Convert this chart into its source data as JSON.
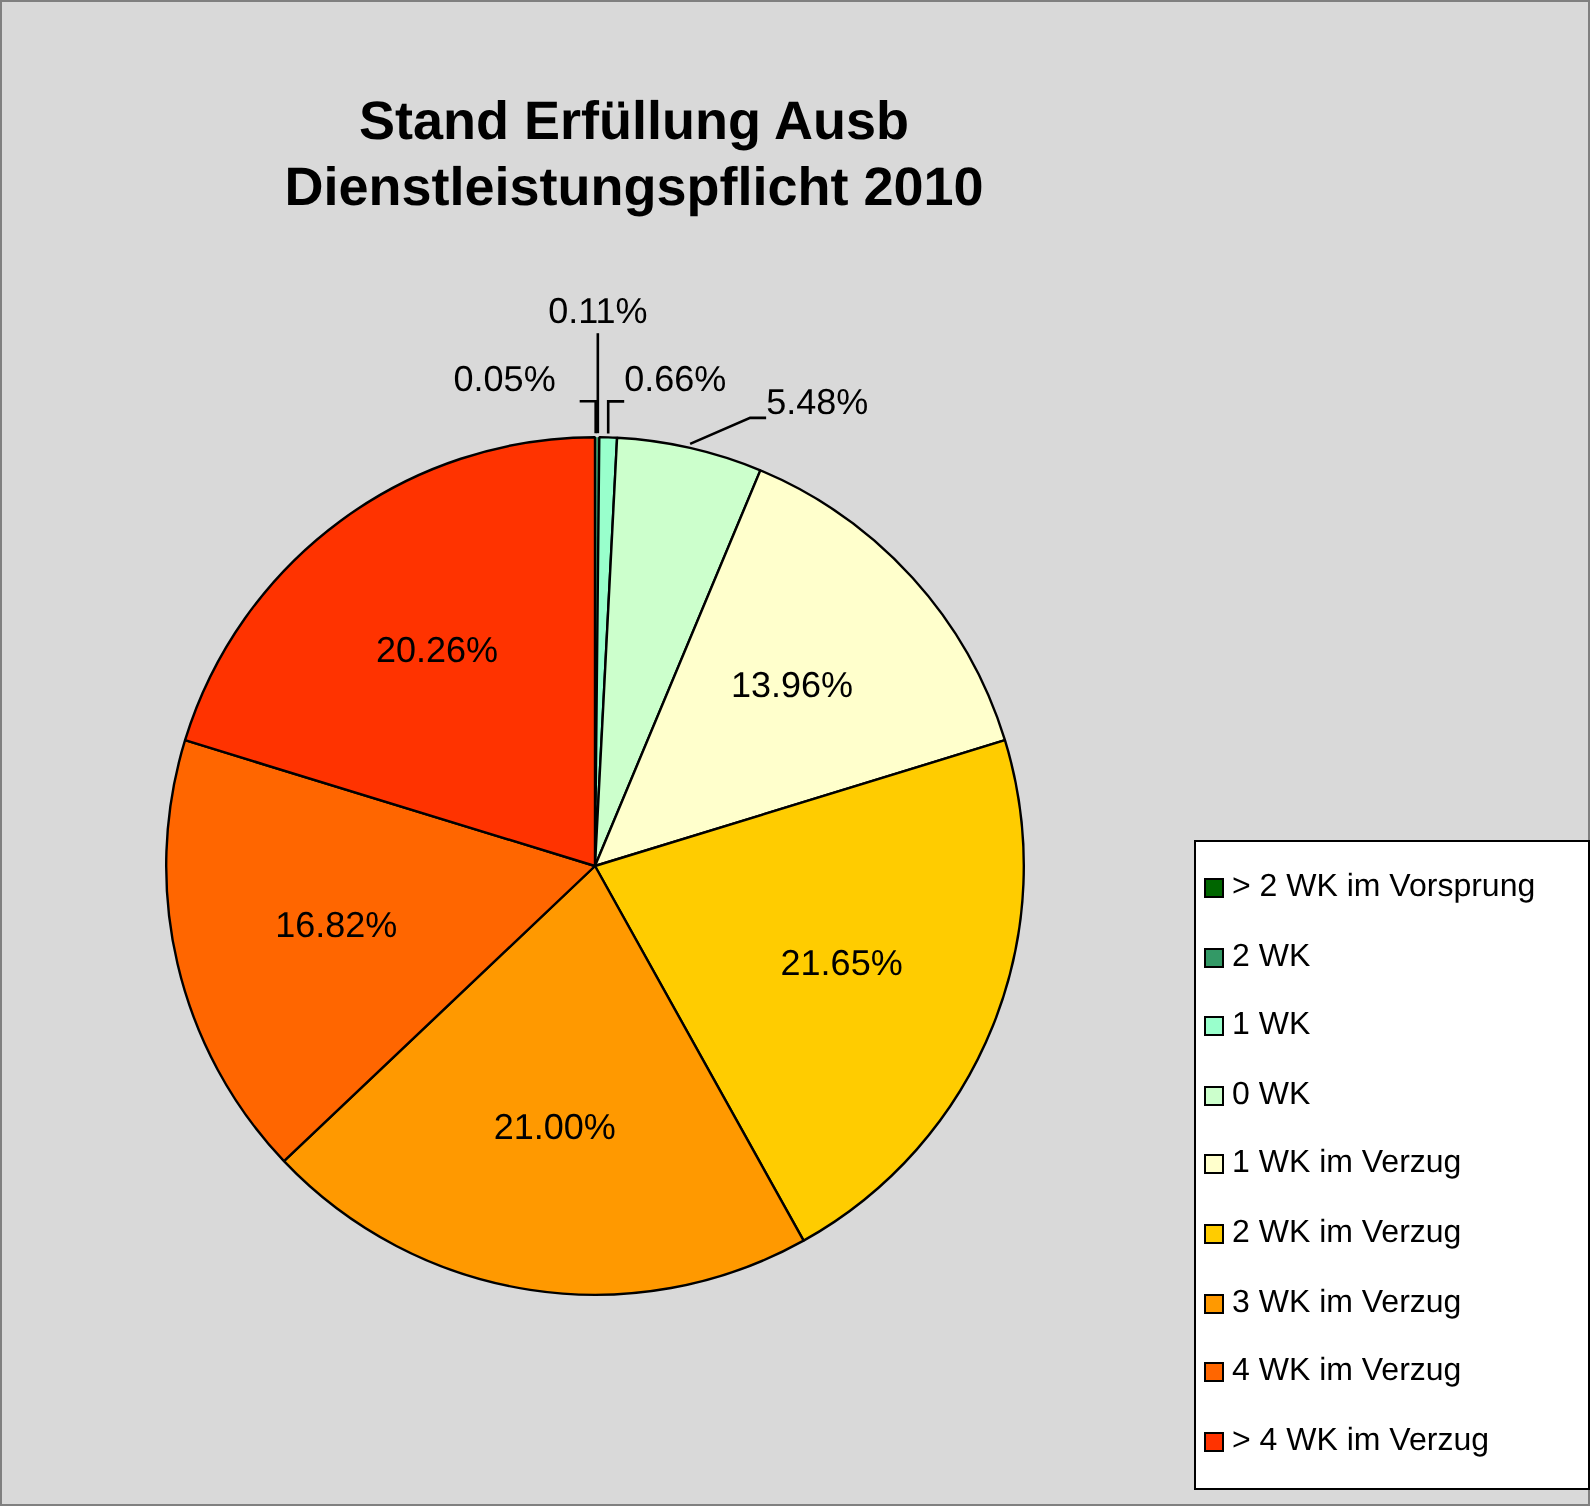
{
  "chart_data": {
    "type": "pie",
    "title": "Stand Erfüllung Ausb\nDienstleistungspflicht 2010",
    "categories": [
      "> 2 WK im Vorsprung",
      "2 WK",
      "1 WK",
      "0 WK",
      "1 WK im Verzug",
      "2 WK im Verzug",
      "3 WK im Verzug",
      "4 WK im Verzug",
      "> 4 WK im Verzug"
    ],
    "values": [
      0.05,
      0.11,
      0.66,
      5.48,
      13.96,
      21.65,
      21.0,
      16.82,
      20.26
    ],
    "value_labels": [
      "0.05%",
      "0.11%",
      "0.66%",
      "5.48%",
      "13.96%",
      "21.65%",
      "21.00%",
      "16.82%",
      "20.26%"
    ],
    "colors": [
      "#006600",
      "#339966",
      "#99ffcc",
      "#ccffcc",
      "#ffffcc",
      "#ffcc00",
      "#ff9900",
      "#ff6600",
      "#ff3300"
    ],
    "legend": "bottom right"
  }
}
